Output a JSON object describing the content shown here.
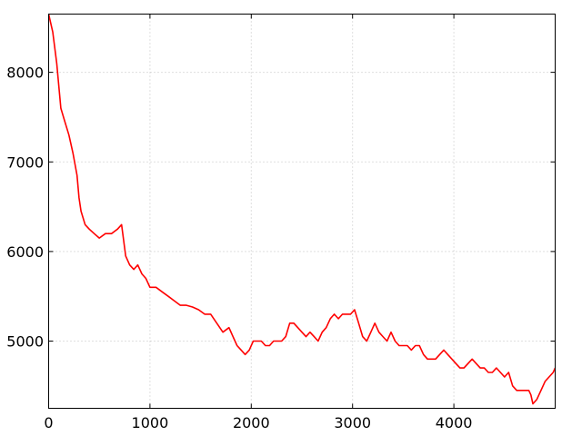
{
  "chart_data": {
    "type": "line",
    "title": "",
    "xlabel": "",
    "ylabel": "",
    "xlim": [
      0,
      5000
    ],
    "ylim": [
      4250,
      8650
    ],
    "x_ticks": [
      0,
      1000,
      2000,
      3000,
      4000
    ],
    "x_tick_labels": [
      "0",
      "1000",
      "2000",
      "3000",
      "4000"
    ],
    "y_ticks": [
      5000,
      6000,
      7000,
      8000
    ],
    "y_tick_labels": [
      "5000",
      "6000",
      "7000",
      "8000"
    ],
    "grid": true,
    "legend": "none",
    "series": [
      {
        "color": "#ff0000",
        "x": [
          0,
          40,
          80,
          120,
          160,
          200,
          240,
          280,
          300,
          320,
          360,
          400,
          450,
          500,
          560,
          620,
          680,
          720,
          760,
          800,
          840,
          880,
          920,
          960,
          1000,
          1060,
          1120,
          1180,
          1240,
          1300,
          1360,
          1420,
          1480,
          1540,
          1600,
          1660,
          1720,
          1780,
          1820,
          1860,
          1900,
          1940,
          1980,
          2020,
          2060,
          2100,
          2140,
          2180,
          2220,
          2260,
          2300,
          2340,
          2380,
          2420,
          2460,
          2500,
          2540,
          2580,
          2620,
          2660,
          2700,
          2740,
          2780,
          2820,
          2860,
          2900,
          2940,
          2980,
          3020,
          3060,
          3100,
          3140,
          3180,
          3220,
          3260,
          3300,
          3340,
          3380,
          3420,
          3460,
          3500,
          3540,
          3580,
          3620,
          3660,
          3700,
          3740,
          3780,
          3820,
          3860,
          3900,
          3940,
          3980,
          4020,
          4060,
          4100,
          4140,
          4180,
          4220,
          4260,
          4300,
          4340,
          4380,
          4420,
          4460,
          4500,
          4540,
          4580,
          4620,
          4660,
          4700,
          4740,
          4760,
          4780,
          4820,
          4860,
          4900,
          4940,
          4980,
          5000
        ],
        "y": [
          8650,
          8450,
          8100,
          7600,
          7450,
          7300,
          7100,
          6850,
          6600,
          6450,
          6300,
          6250,
          6200,
          6150,
          6200,
          6200,
          6250,
          6300,
          5950,
          5850,
          5800,
          5850,
          5750,
          5700,
          5600,
          5600,
          5550,
          5500,
          5450,
          5400,
          5400,
          5380,
          5350,
          5300,
          5300,
          5200,
          5100,
          5150,
          5050,
          4950,
          4900,
          4850,
          4900,
          5000,
          5000,
          5000,
          4950,
          4950,
          5000,
          5000,
          5000,
          5050,
          5200,
          5200,
          5150,
          5100,
          5050,
          5100,
          5050,
          5000,
          5100,
          5150,
          5250,
          5300,
          5250,
          5300,
          5300,
          5300,
          5350,
          5200,
          5050,
          5000,
          5100,
          5200,
          5100,
          5050,
          5000,
          5100,
          5000,
          4950,
          4950,
          4950,
          4900,
          4950,
          4950,
          4850,
          4800,
          4800,
          4800,
          4850,
          4900,
          4850,
          4800,
          4750,
          4700,
          4700,
          4750,
          4800,
          4750,
          4700,
          4700,
          4650,
          4650,
          4700,
          4650,
          4600,
          4650,
          4500,
          4450,
          4450,
          4450,
          4450,
          4400,
          4300,
          4350,
          4450,
          4550,
          4600,
          4650,
          4700
        ]
      }
    ]
  }
}
